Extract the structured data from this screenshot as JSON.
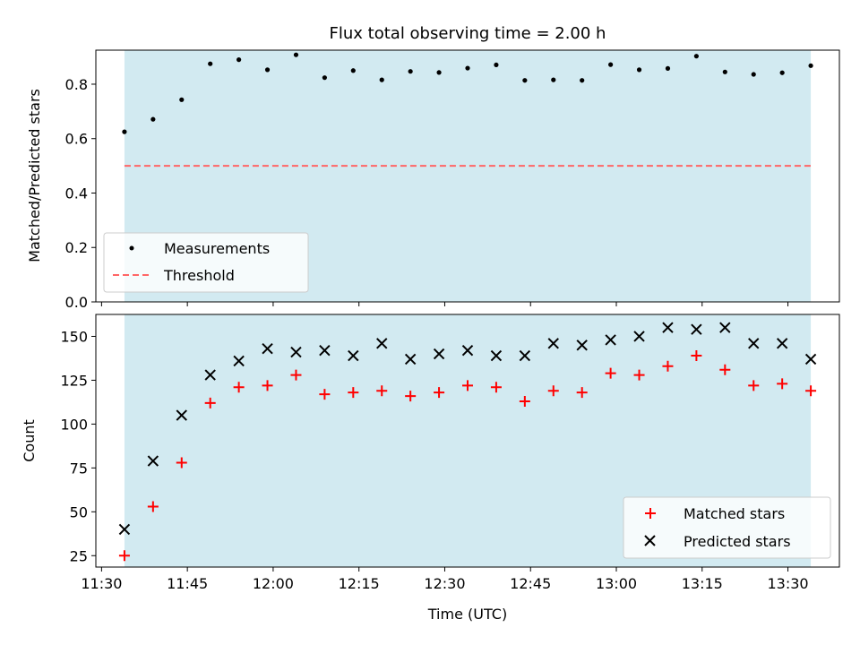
{
  "figure": {
    "title": "Flux total observing time = 2.00 h"
  },
  "colors": {
    "observing_band": "#add8e6",
    "threshold": "#ff6666",
    "measurements": "#000000",
    "matched": "#ff0000",
    "predicted": "#000000"
  },
  "chart_data": [
    {
      "type": "scatter",
      "ylabel": "Matched/Predicted stars",
      "ylim": [
        0,
        0.925
      ],
      "yticks": [
        0.0,
        0.2,
        0.4,
        0.6,
        0.8
      ],
      "ytick_labels": [
        "0.0",
        "0.2",
        "0.4",
        "0.6",
        "0.8"
      ],
      "xlim": [
        "11:29",
        "13:39"
      ],
      "observing_window": [
        "11:34",
        "13:34"
      ],
      "grid": false,
      "legend": {
        "placement": "lower-left",
        "entries": [
          "Measurements",
          "Threshold"
        ]
      },
      "threshold": {
        "name": "Threshold",
        "value": 0.5
      },
      "series": [
        {
          "name": "Measurements",
          "marker": "dot",
          "x": [
            "11:34",
            "11:39",
            "11:44",
            "11:49",
            "11:54",
            "11:59",
            "12:04",
            "12:09",
            "12:14",
            "12:19",
            "12:24",
            "12:29",
            "12:34",
            "12:39",
            "12:44",
            "12:49",
            "12:54",
            "12:59",
            "13:04",
            "13:09",
            "13:14",
            "13:19",
            "13:24",
            "13:29",
            "13:34"
          ],
          "values": [
            0.625,
            0.671,
            0.743,
            0.875,
            0.89,
            0.853,
            0.908,
            0.824,
            0.85,
            0.816,
            0.847,
            0.843,
            0.859,
            0.871,
            0.814,
            0.816,
            0.814,
            0.872,
            0.853,
            0.858,
            0.903,
            0.845,
            0.836,
            0.842,
            0.868
          ]
        }
      ]
    },
    {
      "type": "scatter",
      "title": "",
      "xlabel": "Time (UTC)",
      "ylabel": "Count",
      "ylim": [
        18.5,
        162.5
      ],
      "yticks": [
        25,
        50,
        75,
        100,
        125,
        150
      ],
      "ytick_labels": [
        "25",
        "50",
        "75",
        "100",
        "125",
        "150"
      ],
      "xlim": [
        "11:29",
        "13:39"
      ],
      "xticks": [
        "11:30",
        "11:45",
        "12:00",
        "12:15",
        "12:30",
        "12:45",
        "13:00",
        "13:15",
        "13:30"
      ],
      "xtick_labels": [
        "11:30",
        "11:45",
        "12:00",
        "12:15",
        "12:30",
        "12:45",
        "13:00",
        "13:15",
        "13:30"
      ],
      "observing_window": [
        "11:34",
        "13:34"
      ],
      "grid": false,
      "legend": {
        "placement": "lower-right",
        "entries": [
          "Matched stars",
          "Predicted stars"
        ]
      },
      "series": [
        {
          "name": "Matched stars",
          "marker": "plus",
          "x": [
            "11:34",
            "11:39",
            "11:44",
            "11:49",
            "11:54",
            "11:59",
            "12:04",
            "12:09",
            "12:14",
            "12:19",
            "12:24",
            "12:29",
            "12:34",
            "12:39",
            "12:44",
            "12:49",
            "12:54",
            "12:59",
            "13:04",
            "13:09",
            "13:14",
            "13:19",
            "13:24",
            "13:29",
            "13:34"
          ],
          "values": [
            25,
            53,
            78,
            112,
            121,
            122,
            128,
            117,
            118,
            119,
            116,
            118,
            122,
            121,
            113,
            119,
            118,
            129,
            128,
            133,
            139,
            131,
            122,
            123,
            119
          ]
        },
        {
          "name": "Predicted stars",
          "marker": "x",
          "x": [
            "11:34",
            "11:39",
            "11:44",
            "11:49",
            "11:54",
            "11:59",
            "12:04",
            "12:09",
            "12:14",
            "12:19",
            "12:24",
            "12:29",
            "12:34",
            "12:39",
            "12:44",
            "12:49",
            "12:54",
            "12:59",
            "13:04",
            "13:09",
            "13:14",
            "13:19",
            "13:24",
            "13:29",
            "13:34"
          ],
          "values": [
            40,
            79,
            105,
            128,
            136,
            143,
            141,
            142,
            139,
            146,
            137,
            140,
            142,
            139,
            139,
            146,
            145,
            148,
            150,
            155,
            154,
            155,
            146,
            146,
            137
          ]
        }
      ]
    }
  ]
}
